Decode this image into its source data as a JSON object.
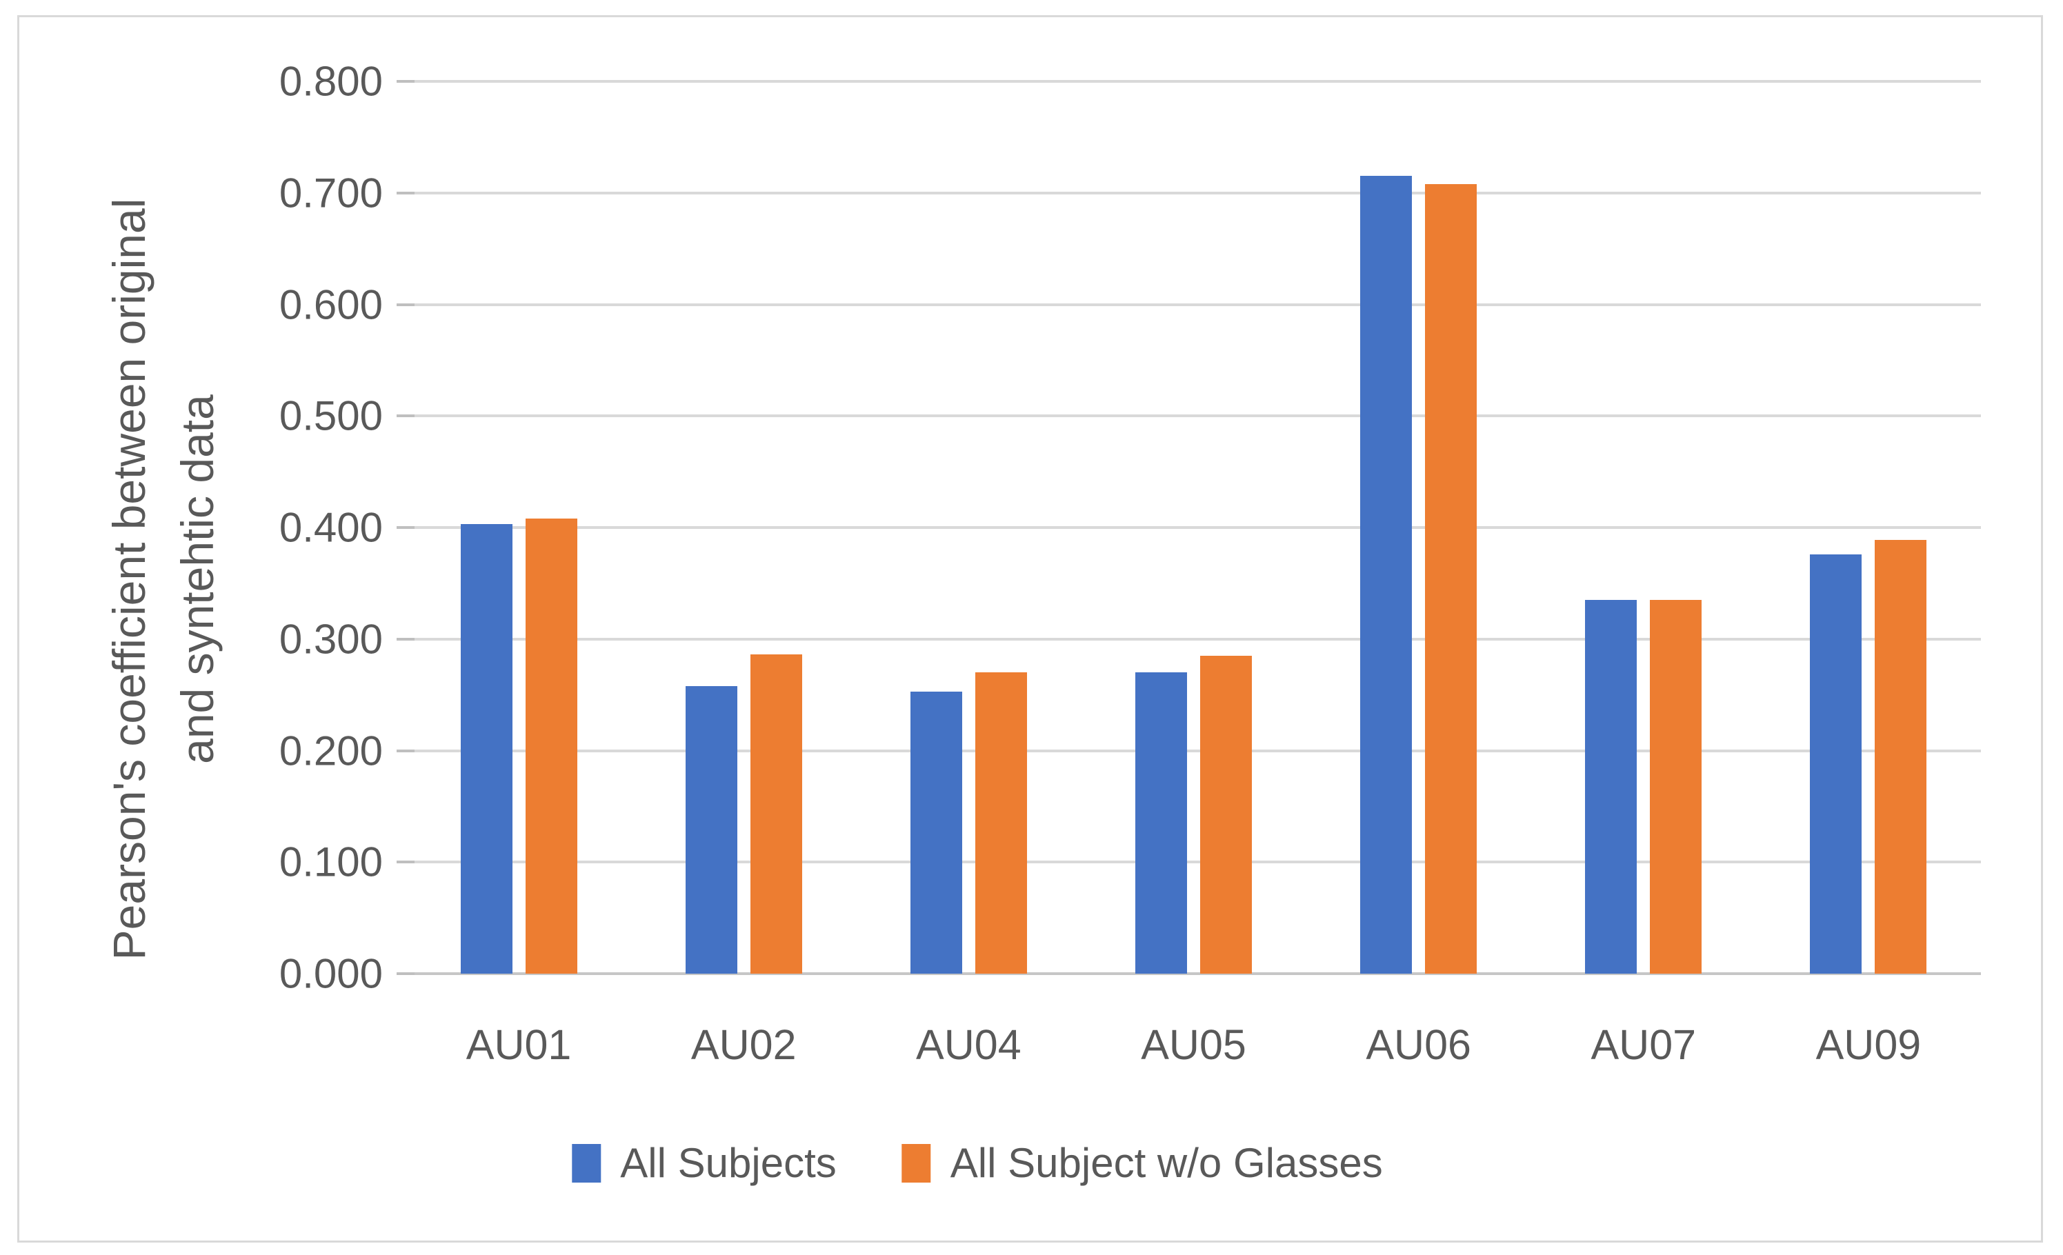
{
  "chart_data": {
    "type": "bar",
    "title": "",
    "categories": [
      "AU01",
      "AU02",
      "AU04",
      "AU05",
      "AU06",
      "AU07",
      "AU09"
    ],
    "series": [
      {
        "name": "All Subjects",
        "color": "#4472C4",
        "values": [
          0.403,
          0.258,
          0.253,
          0.27,
          0.715,
          0.335,
          0.376
        ]
      },
      {
        "name": "All Subject w/o Glasses",
        "color": "#ED7D31",
        "values": [
          0.408,
          0.286,
          0.27,
          0.285,
          0.708,
          0.335,
          0.389
        ]
      }
    ],
    "ylabel_line1": "Pearson's coefficient between original",
    "ylabel_line2": "and syntehtic data",
    "xlabel": "",
    "ylim": [
      0.0,
      0.8
    ],
    "ytick_step": 0.1,
    "ytick_labels": [
      "0.000",
      "0.100",
      "0.200",
      "0.300",
      "0.400",
      "0.500",
      "0.600",
      "0.700",
      "0.800"
    ],
    "grid": true,
    "legend_position": "bottom",
    "colors": {
      "gridline": "#d9d9d9",
      "axis_line": "#c6c6c6",
      "tick_mark": "#bfbfbf",
      "text": "#595959",
      "frame_border": "#d9d9d9",
      "background": "#ffffff"
    }
  }
}
